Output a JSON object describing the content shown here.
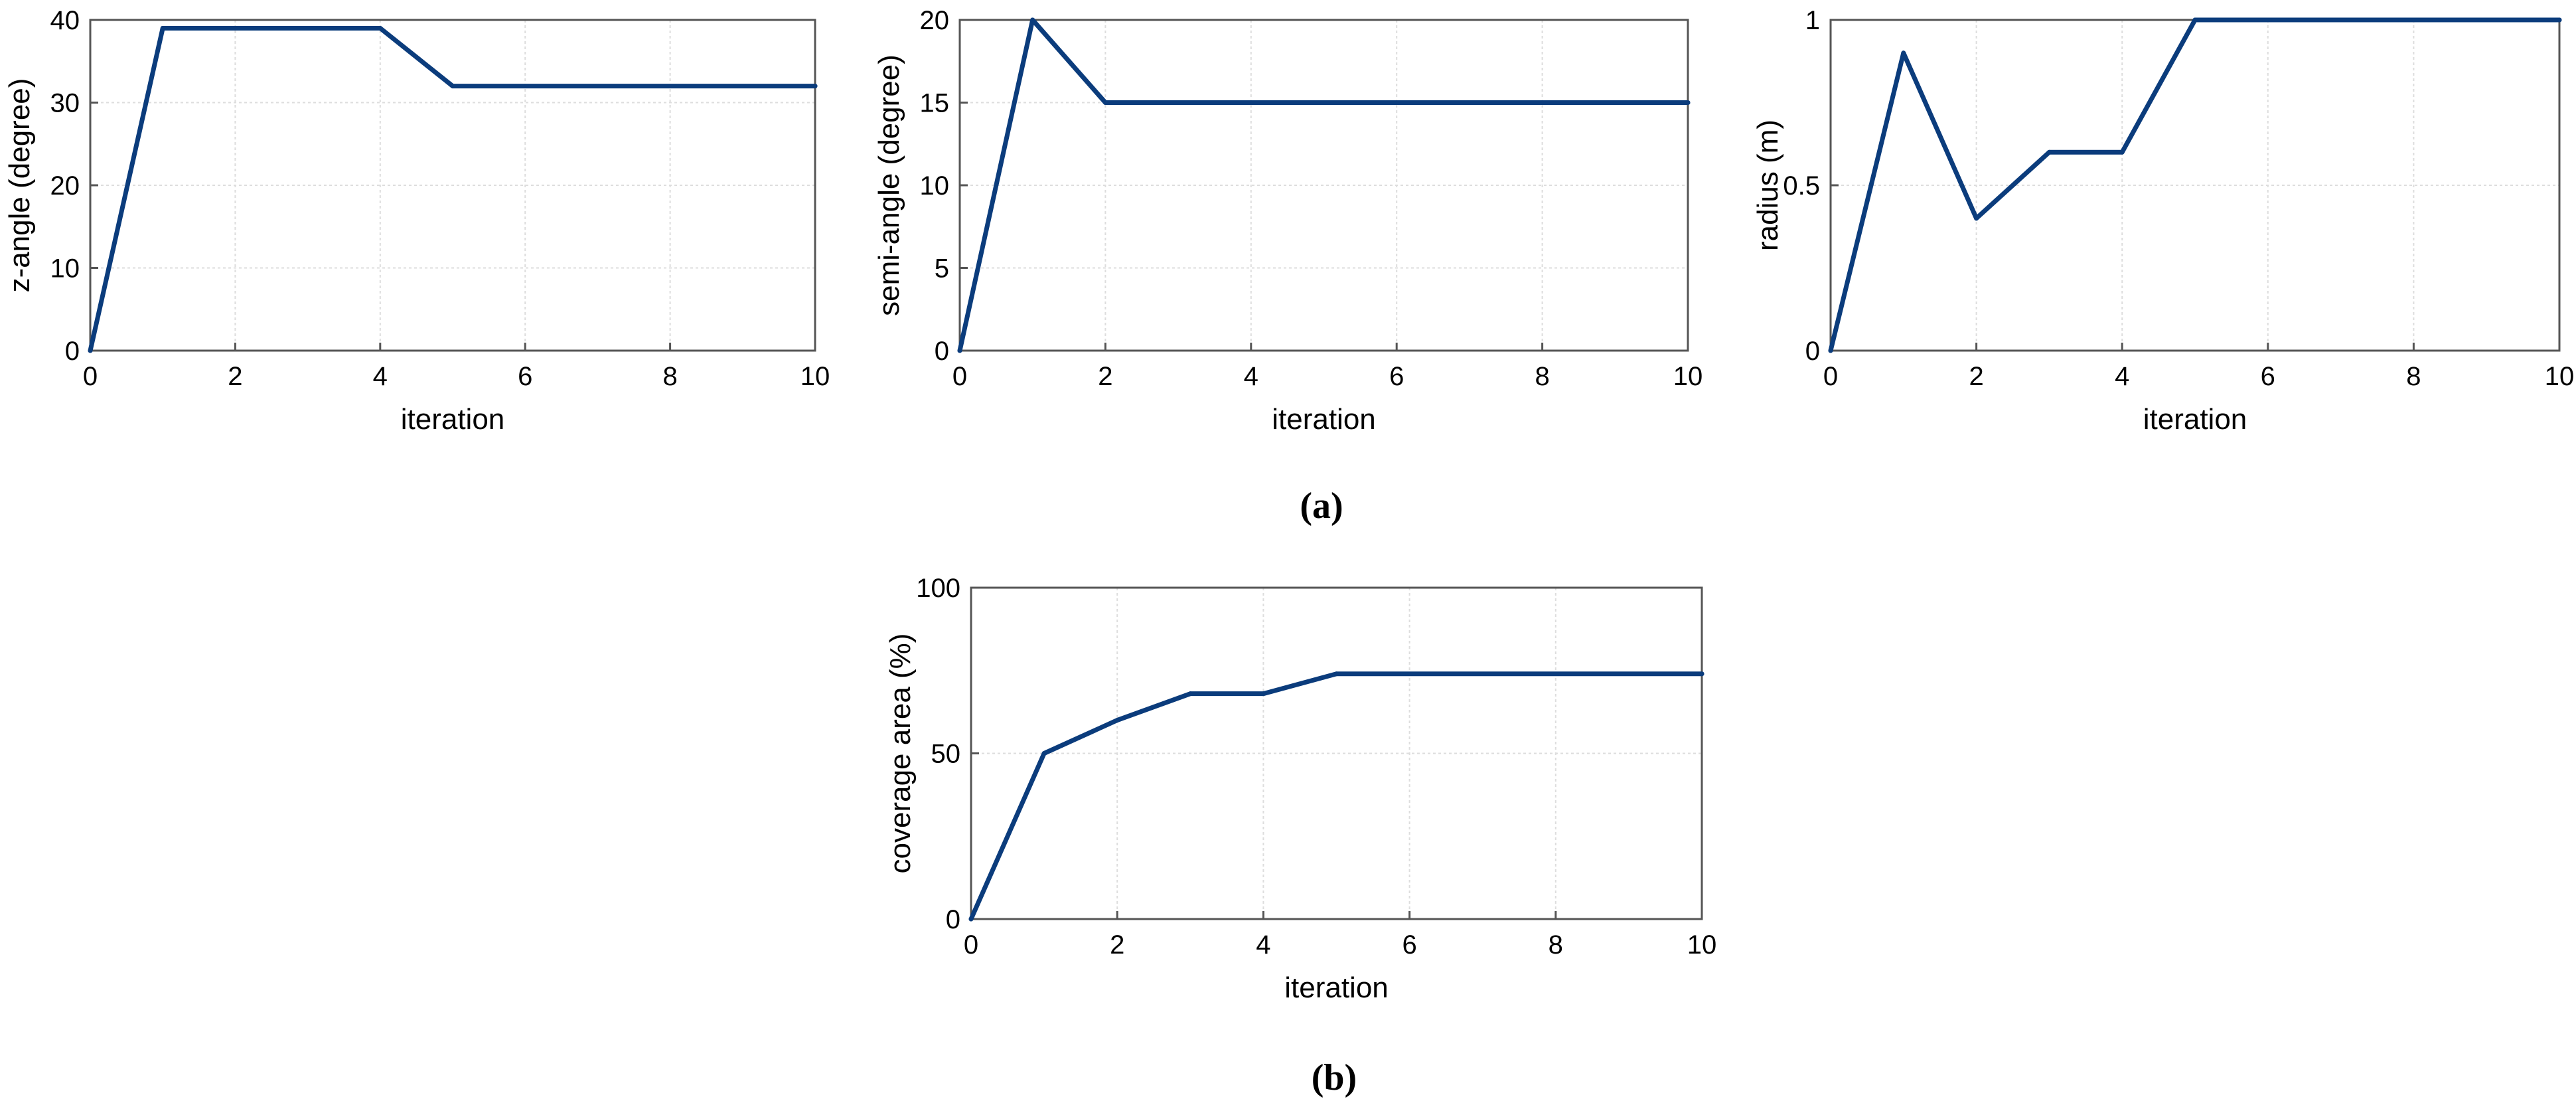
{
  "chart_data": [
    {
      "type": "line",
      "xlabel": "iteration",
      "ylabel": "z-angle (degree)",
      "xlim": [
        0,
        10
      ],
      "ylim": [
        0,
        40
      ],
      "xticks": [
        "0",
        "2",
        "4",
        "6",
        "8",
        "10"
      ],
      "yticks": [
        "0",
        "10",
        "20",
        "30",
        "40"
      ],
      "grid": true,
      "series": [
        {
          "name": "z-angle",
          "x": [
            0,
            1,
            4,
            5,
            10
          ],
          "y": [
            0,
            39,
            39,
            32,
            32
          ]
        }
      ]
    },
    {
      "type": "line",
      "xlabel": "iteration",
      "ylabel": "semi-angle (degree)",
      "xlim": [
        0,
        10
      ],
      "ylim": [
        0,
        20
      ],
      "xticks": [
        "0",
        "2",
        "4",
        "6",
        "8",
        "10"
      ],
      "yticks": [
        "0",
        "5",
        "10",
        "15",
        "20"
      ],
      "grid": true,
      "series": [
        {
          "name": "semi-angle",
          "x": [
            0,
            1,
            2,
            10
          ],
          "y": [
            0,
            20,
            15,
            15
          ]
        }
      ]
    },
    {
      "type": "line",
      "xlabel": "iteration",
      "ylabel": "radius (m)",
      "xlim": [
        0,
        10
      ],
      "ylim": [
        0,
        1
      ],
      "xticks": [
        "0",
        "2",
        "4",
        "6",
        "8",
        "10"
      ],
      "yticks": [
        "0",
        "0.5",
        "1"
      ],
      "grid": true,
      "series": [
        {
          "name": "radius",
          "x": [
            0,
            1,
            2,
            3,
            4,
            5,
            10
          ],
          "y": [
            0,
            0.9,
            0.4,
            0.6,
            0.6,
            1,
            1
          ]
        }
      ]
    },
    {
      "type": "line",
      "xlabel": "iteration",
      "ylabel": "coverage area (%)",
      "xlim": [
        0,
        10
      ],
      "ylim": [
        0,
        100
      ],
      "xticks": [
        "0",
        "2",
        "4",
        "6",
        "8",
        "10"
      ],
      "yticks": [
        "0",
        "50",
        "100"
      ],
      "grid": true,
      "series": [
        {
          "name": "coverage area",
          "x": [
            0,
            1,
            2,
            3,
            4,
            5,
            10
          ],
          "y": [
            0,
            50,
            60,
            68,
            68,
            74,
            74
          ]
        }
      ]
    }
  ],
  "panel_labels": {
    "a": "(a)",
    "b": "(b)"
  },
  "colors": {
    "line": "#0b3c7c"
  }
}
